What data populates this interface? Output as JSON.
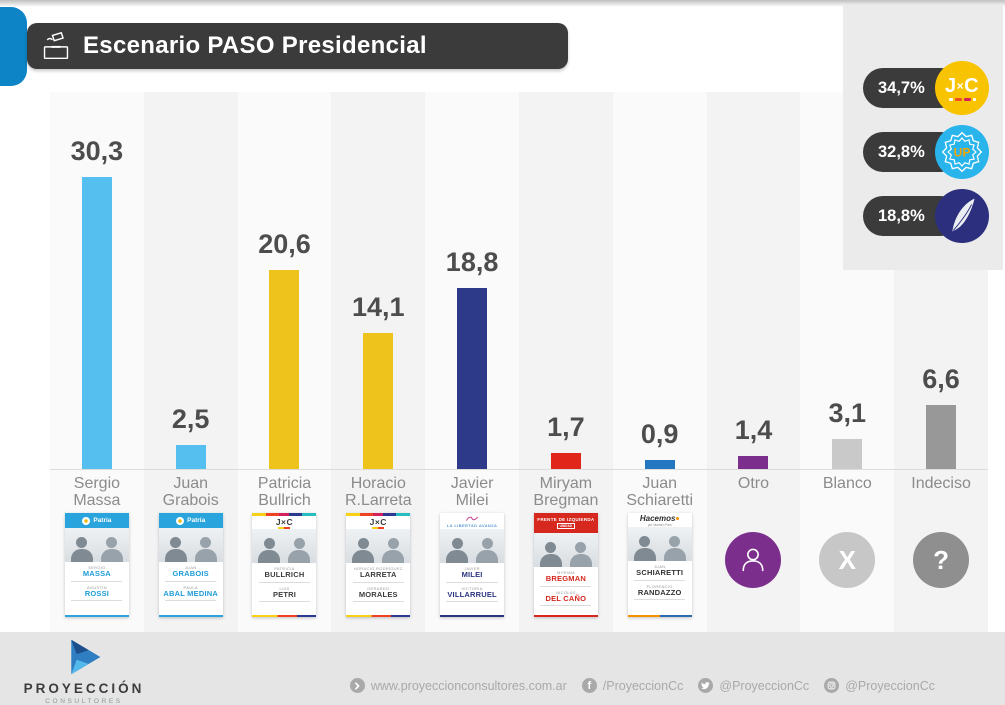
{
  "title": {
    "text": "Escenario PASO Presidencial",
    "icon": "ballot-box-icon"
  },
  "summary_badges": [
    {
      "value": "34,7%",
      "logo": "jxc",
      "logo_text": "J×C",
      "color": "#f8c301"
    },
    {
      "value": "32,8%",
      "logo": "up",
      "logo_text": "UP",
      "color": "#29b5ec"
    },
    {
      "value": "18,8%",
      "logo": "lla",
      "logo_text": "",
      "color": "#2b2f7e"
    }
  ],
  "chart_data": {
    "type": "bar",
    "title": "Escenario PASO Presidencial",
    "categories": [
      "Sergio Massa",
      "Juan Grabois",
      "Patricia Bullrich",
      "Horacio R.Larreta",
      "Javier Milei",
      "Miryam Bregman",
      "Juan Schiaretti",
      "Otro",
      "Blanco",
      "Indeciso"
    ],
    "values": [
      30.3,
      2.5,
      20.6,
      14.1,
      18.8,
      1.7,
      0.9,
      1.4,
      3.1,
      6.6
    ],
    "value_labels": [
      "30,3",
      "2,5",
      "20,6",
      "14,1",
      "18,8",
      "1,7",
      "0,9",
      "1,4",
      "3,1",
      "6,6"
    ],
    "bar_colors": [
      "#55c0f0",
      "#55c0f0",
      "#eec31b",
      "#eec31b",
      "#2d3a8a",
      "#e1251b",
      "#2277c0",
      "#7c2e8d",
      "#c9c9c9",
      "#989898"
    ],
    "ylim": [
      0,
      33
    ],
    "grid": false,
    "legend_position": "top-right",
    "legend_badges": [
      {
        "label": "34,7%",
        "party_logo": "JxC"
      },
      {
        "label": "32,8%",
        "party_logo": "UP sun"
      },
      {
        "label": "18,8%",
        "party_logo": "La Libertad Avanza feather"
      }
    ]
  },
  "columns": [
    {
      "label_lines": [
        "Sergio",
        "Massa"
      ],
      "ballot": {
        "party": "up",
        "header_text": "Patria",
        "name_color": "#1e9cd7",
        "candidates": [
          {
            "pre": "SERGIO",
            "name": "MASSA"
          },
          {
            "pre": "AGUSTÍN",
            "name": "ROSSI"
          }
        ]
      }
    },
    {
      "label_lines": [
        "Juan",
        "Grabois"
      ],
      "ballot": {
        "party": "up",
        "header_text": "Patria",
        "name_color": "#1e9cd7",
        "candidates": [
          {
            "pre": "JUAN",
            "name": "GRABOIS"
          },
          {
            "pre": "PAULA",
            "name": "ABAL MEDINA"
          }
        ]
      }
    },
    {
      "label_lines": [
        "Patricia",
        "Bullrich"
      ],
      "ballot": {
        "party": "jxc",
        "header_text": "J×C",
        "name_color": "#3c3c3c",
        "candidates": [
          {
            "pre": "PATRICIA",
            "name": "BULLRICH"
          },
          {
            "pre": "LUIS",
            "name": "PETRI"
          }
        ]
      }
    },
    {
      "label_lines": [
        "Horacio",
        "R.Larreta"
      ],
      "ballot": {
        "party": "jxc",
        "header_text": "J×C",
        "name_color": "#3c3c3c",
        "candidates": [
          {
            "pre": "HORACIO RODRÍGUEZ",
            "name": "LARRETA"
          },
          {
            "pre": "GERARDO",
            "name": "MORALES"
          }
        ]
      }
    },
    {
      "label_lines": [
        "Javier",
        "Milei"
      ],
      "ballot": {
        "party": "lla",
        "header_text": "LA LIBERTAD AVANZA",
        "name_color": "#2c3480",
        "candidates": [
          {
            "pre": "JAVIER",
            "name": "MILEI"
          },
          {
            "pre": "VICTORIA",
            "name": "VILLARRUEL"
          }
        ]
      }
    },
    {
      "label_lines": [
        "Miryam",
        "Bregman"
      ],
      "ballot": {
        "party": "fit",
        "header_text": "FRENTE DE IZQUIERDA",
        "header_subtext": "UNIDAD",
        "name_color": "#d6281e",
        "candidates": [
          {
            "pre": "MYRIAM",
            "name": "BREGMAN"
          },
          {
            "pre": "NICOLÁS",
            "name": "DEL CAÑO"
          }
        ]
      }
    },
    {
      "label_lines": [
        "Juan",
        "Schiaretti"
      ],
      "ballot": {
        "party": "hacemos",
        "header_text": "Hacemos",
        "header_subtext": "por Nuestro País",
        "name_color": "#333333",
        "candidates": [
          {
            "pre": "JUAN",
            "name": "SCHIARETTI"
          },
          {
            "pre": "FLORENCIO",
            "name": "RANDAZZO"
          }
        ]
      }
    },
    {
      "label_lines": [
        "Otro"
      ],
      "circle": {
        "icon": "person-icon",
        "bg": "#7c2e8d"
      }
    },
    {
      "label_lines": [
        "Blanco"
      ],
      "circle": {
        "icon": "x-icon",
        "glyph": "X",
        "bg": "#c7c7c7"
      }
    },
    {
      "label_lines": [
        "Indeciso"
      ],
      "circle": {
        "icon": "question-icon",
        "glyph": "?",
        "bg": "#8f8f8f"
      }
    }
  ],
  "footer": {
    "logo": {
      "name": "PROYECCIÓN",
      "sub": "CONSULTORES",
      "icon": "proyeccion-arrow-logo"
    },
    "links": [
      {
        "icon": "arrow-circle-icon",
        "text": "www.proyeccionconsultores.com.ar"
      },
      {
        "icon": "facebook-icon",
        "text": "/ProyeccionCc"
      },
      {
        "icon": "twitter-icon",
        "text": "@ProyeccionCc"
      },
      {
        "icon": "instagram-icon",
        "text": "@ProyeccionCc"
      }
    ]
  }
}
